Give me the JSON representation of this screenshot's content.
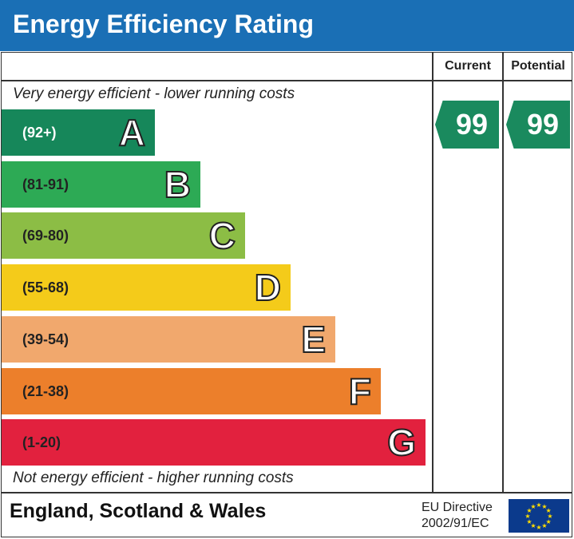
{
  "title": "Energy Efficiency Rating",
  "columns": {
    "current": "Current",
    "potential": "Potential"
  },
  "notes": {
    "top": "Very energy efficient - lower running costs",
    "bottom": "Not energy efficient - higher running costs"
  },
  "footer": {
    "region": "England, Scotland & Wales",
    "directive_line1": "EU Directive",
    "directive_line2": "2002/91/EC"
  },
  "chart_data": {
    "type": "bar",
    "categories": [
      "A",
      "B",
      "C",
      "D",
      "E",
      "F",
      "G"
    ],
    "ranges": [
      "(92+)",
      "(81-91)",
      "(69-80)",
      "(55-68)",
      "(39-54)",
      "(21-38)",
      "(1-20)"
    ],
    "colors": [
      "#16875a",
      "#2daa55",
      "#8cbd45",
      "#f4cb1a",
      "#f1a86d",
      "#ec7f2b",
      "#e2213e"
    ],
    "current": 99,
    "potential": 99
  }
}
